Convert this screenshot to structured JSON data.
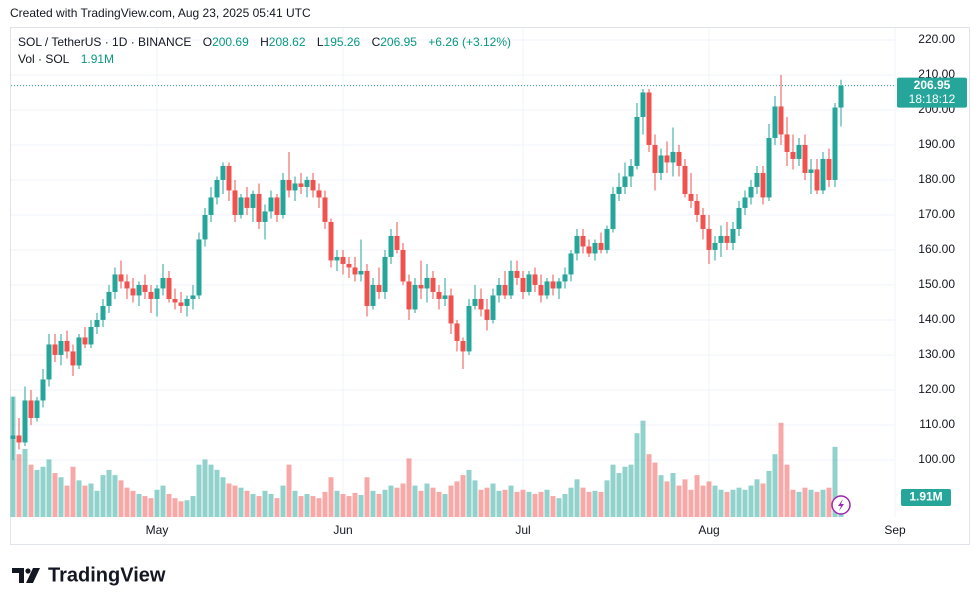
{
  "header": "Created with TradingView.com, Aug 23, 2025 05:41 UTC",
  "footer": {
    "brand": "TradingView"
  },
  "chart_data": {
    "type": "candlestick",
    "title": "SOL / TetherUS · 1D · BINANCE",
    "ohlc_labels": [
      "O",
      "H",
      "L",
      "C"
    ],
    "change": "+6.26 (+3.12%)",
    "volume_title": "Vol · SOL",
    "last_volume_label": "1.91M",
    "countdown": "18:18:12",
    "up_color": "#26a69a",
    "down_color": "#ef5350",
    "grid": true,
    "ylim": [
      83.7,
      223.7
    ],
    "yticks": [
      {
        "value": 100,
        "label": "100.00"
      },
      {
        "value": 110,
        "label": "110.00"
      },
      {
        "value": 120,
        "label": "120.00"
      },
      {
        "value": 130,
        "label": "130.00"
      },
      {
        "value": 140,
        "label": "140.00"
      },
      {
        "value": 150,
        "label": "150.00"
      },
      {
        "value": 160,
        "label": "160.00"
      },
      {
        "value": 170,
        "label": "170.00"
      },
      {
        "value": 180,
        "label": "180.00"
      },
      {
        "value": 190,
        "label": "190.00"
      },
      {
        "value": 200,
        "label": "200.00"
      },
      {
        "value": 210,
        "label": "210.00"
      },
      {
        "value": 220,
        "label": "220.00"
      }
    ],
    "categories": [
      null,
      null,
      null,
      null,
      null,
      null,
      null,
      null,
      null,
      null,
      null,
      null,
      null,
      null,
      null,
      null,
      null,
      null,
      null,
      null,
      null,
      null,
      null,
      null,
      "May",
      null,
      null,
      null,
      null,
      null,
      null,
      null,
      null,
      null,
      null,
      null,
      null,
      null,
      null,
      null,
      null,
      null,
      null,
      null,
      null,
      null,
      null,
      null,
      null,
      null,
      null,
      null,
      null,
      null,
      null,
      "Jun",
      null,
      null,
      null,
      null,
      null,
      null,
      null,
      null,
      null,
      null,
      null,
      null,
      null,
      null,
      null,
      null,
      null,
      null,
      null,
      null,
      null,
      null,
      null,
      null,
      null,
      null,
      null,
      null,
      null,
      "Jul",
      null,
      null,
      null,
      null,
      null,
      null,
      null,
      null,
      null,
      null,
      null,
      null,
      null,
      null,
      null,
      null,
      null,
      null,
      null,
      null,
      null,
      null,
      null,
      null,
      null,
      null,
      null,
      null,
      null,
      null,
      "Aug",
      null,
      null,
      null,
      null,
      null,
      null,
      null,
      null,
      null,
      null,
      null,
      null,
      null,
      null,
      null,
      null,
      null,
      null,
      null,
      null,
      null,
      null,
      null,
      null,
      null,
      null,
      null,
      null,
      null,
      null,
      "Sep"
    ],
    "open": [
      106,
      107,
      105,
      117,
      112,
      117,
      123,
      133,
      130,
      134,
      131,
      127,
      135,
      133,
      138,
      140,
      144,
      148,
      153,
      151,
      149,
      147,
      150,
      148,
      146,
      149,
      152,
      146,
      145,
      144,
      146,
      147,
      163,
      170,
      175,
      180,
      184,
      177,
      170,
      175,
      172,
      176,
      168,
      171,
      175,
      170,
      180,
      177,
      179,
      178,
      180,
      177,
      175,
      168,
      157,
      158,
      156,
      155,
      153,
      154,
      144,
      150,
      148,
      158,
      164,
      160,
      151,
      143,
      150,
      149,
      152,
      148,
      146,
      147,
      139,
      134,
      131,
      144,
      146,
      143,
      140,
      147,
      150,
      147,
      154,
      152,
      148,
      153,
      150,
      147,
      151,
      149,
      151,
      153,
      159,
      164,
      161,
      159,
      162,
      160,
      166,
      176,
      178,
      181,
      184,
      198,
      205,
      190,
      182,
      187,
      185,
      188,
      184,
      176,
      174,
      170,
      166,
      160,
      162,
      164,
      162,
      166,
      172,
      175,
      178,
      182,
      175,
      192,
      201,
      193,
      188,
      186,
      190,
      182,
      183,
      177,
      186,
      180,
      200.69,
      null,
      null,
      null,
      null,
      null,
      null,
      null,
      null,
      null
    ],
    "high": [
      118,
      112,
      121,
      120,
      118,
      126,
      136,
      136,
      136,
      137,
      133,
      136,
      138,
      140,
      142,
      146,
      150,
      155,
      157,
      153,
      152,
      151,
      153,
      150,
      150,
      156,
      154,
      149,
      148,
      147,
      150,
      165,
      172,
      178,
      181,
      185,
      185,
      180,
      176,
      178,
      177,
      179,
      173,
      177,
      176,
      182,
      188,
      181,
      182,
      181,
      182,
      179,
      177,
      169,
      160,
      160,
      158,
      158,
      163,
      156,
      152,
      155,
      160,
      166,
      168,
      162,
      153,
      152,
      157,
      156,
      154,
      150,
      152,
      149,
      140,
      135,
      146,
      150,
      149,
      146,
      149,
      152,
      154,
      157,
      157,
      154,
      154,
      155,
      153,
      152,
      153,
      152,
      155,
      160,
      166,
      166,
      163,
      163,
      165,
      167,
      178,
      182,
      185,
      186,
      202,
      206,
      206,
      193,
      189,
      191,
      195,
      190,
      186,
      182,
      176,
      172,
      170,
      164,
      167,
      168,
      168,
      174,
      177,
      180,
      184,
      184,
      196,
      204,
      210,
      198,
      193,
      192,
      193,
      186,
      186,
      188,
      189,
      202,
      208.62,
      null,
      null,
      null,
      null,
      null,
      null,
      null,
      null,
      null
    ],
    "low": [
      100,
      103,
      104,
      110,
      111,
      115,
      121,
      128,
      127,
      129,
      124,
      126,
      132,
      132,
      136,
      138,
      142,
      146,
      149,
      146,
      145,
      144,
      146,
      142,
      141,
      147,
      145,
      143,
      142,
      141,
      143,
      146,
      161,
      168,
      173,
      176,
      174,
      168,
      169,
      170,
      168,
      166,
      163,
      169,
      168,
      169,
      175,
      174,
      176,
      175,
      175,
      172,
      166,
      155,
      154,
      153,
      152,
      151,
      151,
      141,
      143,
      146,
      146,
      156,
      159,
      150,
      140,
      142,
      146,
      145,
      146,
      143,
      144,
      136,
      131,
      126,
      130,
      143,
      141,
      137,
      139,
      145,
      146,
      146,
      150,
      146,
      147,
      148,
      145,
      146,
      147,
      146,
      149,
      151,
      157,
      159,
      158,
      157,
      159,
      159,
      165,
      174,
      176,
      178,
      183,
      193,
      188,
      177,
      180,
      182,
      181,
      181,
      175,
      172,
      168,
      163,
      156,
      157,
      158,
      160,
      160,
      164,
      170,
      173,
      176,
      173,
      174,
      190,
      190,
      184,
      183,
      184,
      180,
      176,
      176,
      176,
      178,
      178,
      195.26,
      null,
      null,
      null,
      null,
      null,
      null,
      null,
      null,
      null
    ],
    "close": [
      107,
      105,
      117,
      112,
      117,
      123,
      133,
      130,
      134,
      131,
      127,
      135,
      133,
      138,
      140,
      144,
      148,
      153,
      151,
      149,
      147,
      150,
      148,
      146,
      149,
      152,
      146,
      145,
      144,
      146,
      147,
      163,
      170,
      175,
      180,
      184,
      177,
      170,
      175,
      172,
      176,
      168,
      171,
      175,
      170,
      180,
      177,
      179,
      178,
      180,
      177,
      175,
      168,
      157,
      158,
      156,
      155,
      153,
      154,
      144,
      150,
      148,
      158,
      164,
      160,
      151,
      143,
      150,
      149,
      152,
      148,
      146,
      147,
      139,
      134,
      131,
      144,
      146,
      143,
      140,
      147,
      150,
      147,
      154,
      152,
      148,
      153,
      150,
      147,
      151,
      149,
      151,
      153,
      159,
      164,
      161,
      159,
      162,
      160,
      166,
      176,
      178,
      181,
      184,
      198,
      205,
      190,
      182,
      187,
      185,
      188,
      184,
      176,
      174,
      170,
      166,
      160,
      162,
      164,
      162,
      166,
      172,
      175,
      178,
      182,
      175,
      192,
      201,
      193,
      188,
      186,
      190,
      182,
      183,
      177,
      186,
      180,
      200.69,
      206.95,
      null,
      null,
      null,
      null,
      null,
      null,
      null,
      null,
      null
    ],
    "volume": [
      11.5,
      6.0,
      6.5,
      5.0,
      4.5,
      4.8,
      5.5,
      4.2,
      3.8,
      3.0,
      4.8,
      3.5,
      3.0,
      3.2,
      2.5,
      4.0,
      4.5,
      4.0,
      3.5,
      2.8,
      2.5,
      2.2,
      2.0,
      1.8,
      2.6,
      3.0,
      2.2,
      1.8,
      1.5,
      1.6,
      2.0,
      5.0,
      5.5,
      5.0,
      4.5,
      3.8,
      3.2,
      3.0,
      2.8,
      2.5,
      2.2,
      2.0,
      2.5,
      2.2,
      1.8,
      3.0,
      5.0,
      2.5,
      2.0,
      2.2,
      2.0,
      1.8,
      2.4,
      3.8,
      2.5,
      2.2,
      2.0,
      2.3,
      2.1,
      3.8,
      2.5,
      2.2,
      2.6,
      3.0,
      2.8,
      3.2,
      5.6,
      3.0,
      2.5,
      3.2,
      2.8,
      2.4,
      2.2,
      3.0,
      3.4,
      4.0,
      4.5,
      3.5,
      2.6,
      2.8,
      3.2,
      2.5,
      2.6,
      3.0,
      2.4,
      2.6,
      2.4,
      2.2,
      2.4,
      2.6,
      2.0,
      1.8,
      2.2,
      2.8,
      3.6,
      2.8,
      2.4,
      2.5,
      2.4,
      3.5,
      5.0,
      4.2,
      4.8,
      5.0,
      8.0,
      9.2,
      6.0,
      5.2,
      4.0,
      3.4,
      4.2,
      3.0,
      3.6,
      2.6,
      4.0,
      3.0,
      3.4,
      3.0,
      2.6,
      2.4,
      2.6,
      2.8,
      2.6,
      3.0,
      3.6,
      3.2,
      4.4,
      6.0,
      9.0,
      5.0,
      2.6,
      2.4,
      2.8,
      2.6,
      2.4,
      2.6,
      2.8,
      6.7,
      1.91,
      null,
      null,
      null,
      null,
      null,
      null,
      null,
      null,
      null
    ]
  }
}
